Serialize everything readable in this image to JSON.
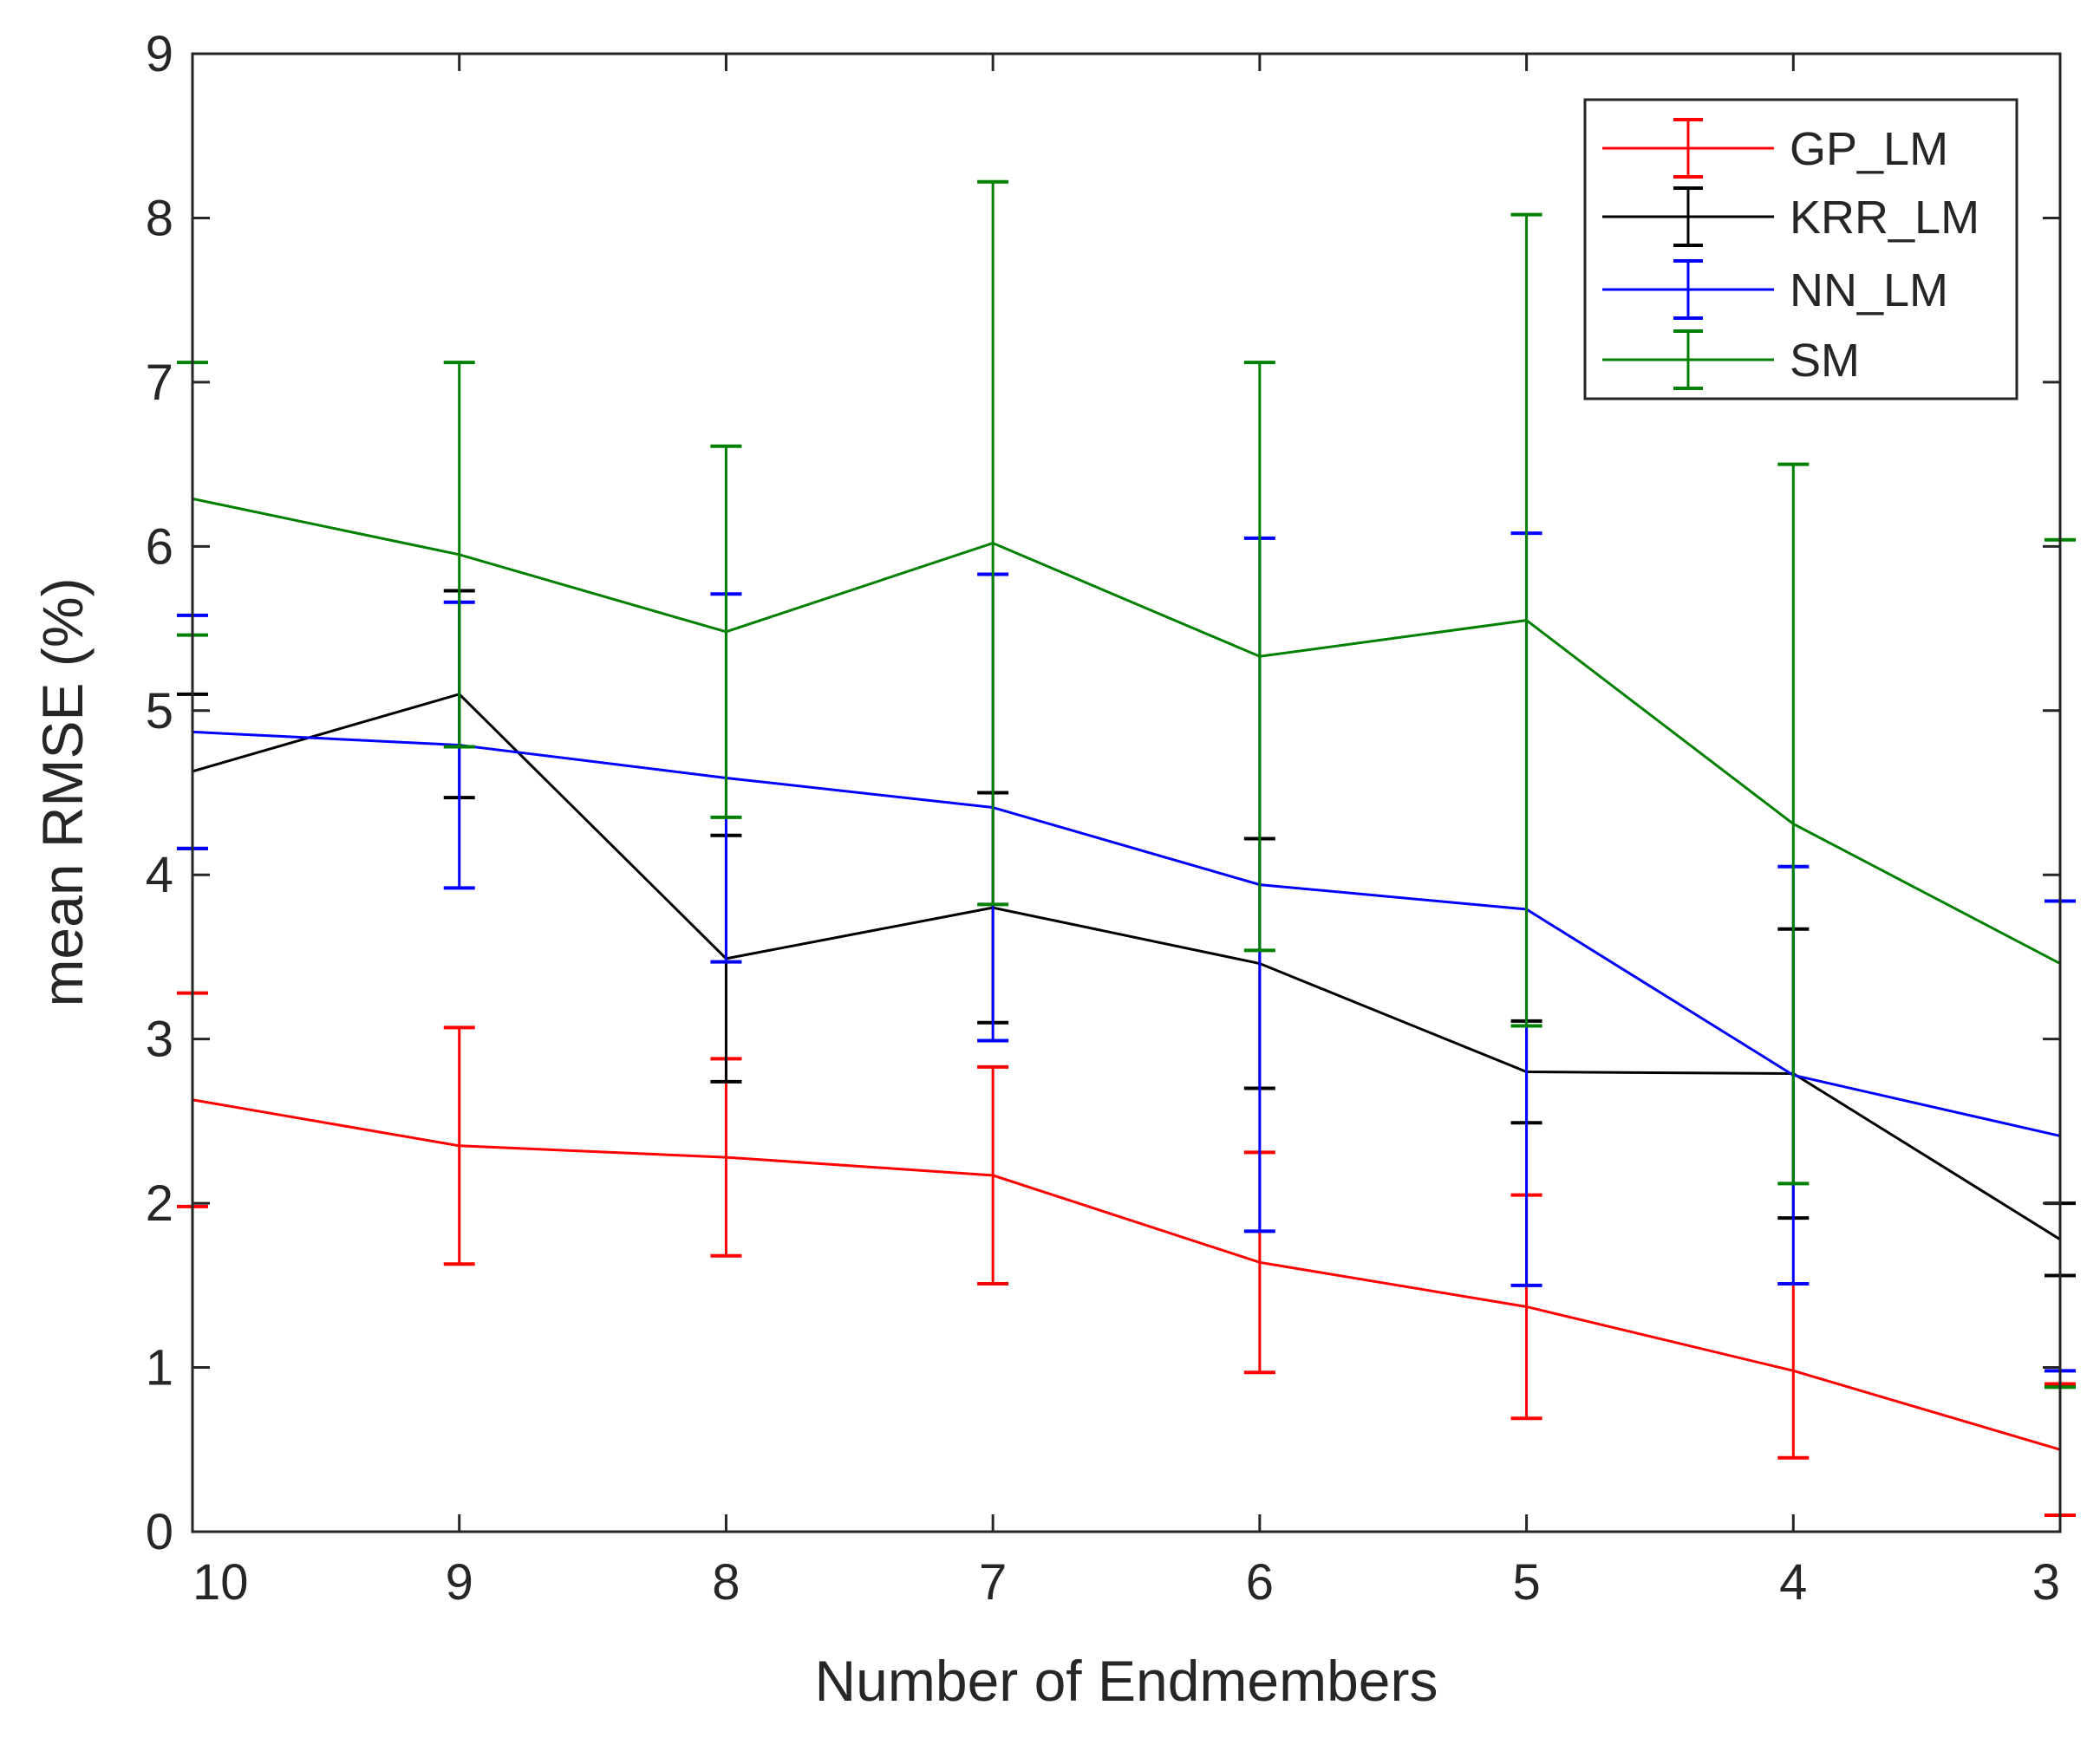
{
  "chart_data": {
    "type": "line",
    "title": "",
    "xlabel": "Number of Endmembers",
    "ylabel": "mean RMSE (%)",
    "categories": [
      "10",
      "9",
      "8",
      "7",
      "6",
      "5",
      "4",
      "3"
    ],
    "ylim": [
      0,
      9
    ],
    "yticks": [
      "0",
      "1",
      "2",
      "3",
      "4",
      "5",
      "6",
      "7",
      "8",
      "9"
    ],
    "grid": false,
    "legend_position": "top-right",
    "series": [
      {
        "name": "GP_LM",
        "color": "#ff0000",
        "values": [
          2.63,
          2.35,
          2.28,
          2.17,
          1.64,
          1.37,
          0.98,
          0.5
        ],
        "errors": [
          0.65,
          0.72,
          0.6,
          0.66,
          0.67,
          0.68,
          0.53,
          0.4
        ]
      },
      {
        "name": "KRR_LM",
        "color": "#000000",
        "values": [
          4.63,
          5.1,
          3.49,
          3.8,
          3.46,
          2.8,
          2.79,
          1.78
        ],
        "errors": [
          0.47,
          0.63,
          0.75,
          0.7,
          0.76,
          0.31,
          0.88,
          0.22
        ]
      },
      {
        "name": "NN_LM",
        "color": "#0000ff",
        "values": [
          4.87,
          4.79,
          4.59,
          4.41,
          3.94,
          3.79,
          2.78,
          2.41
        ],
        "errors": [
          0.71,
          0.87,
          1.12,
          1.42,
          2.11,
          2.29,
          1.27,
          1.43
        ]
      },
      {
        "name": "SM",
        "color": "#008000",
        "values": [
          6.29,
          5.95,
          5.48,
          6.02,
          5.33,
          5.55,
          4.31,
          3.46
        ],
        "errors": [
          0.83,
          1.17,
          1.13,
          2.2,
          1.79,
          2.47,
          2.19,
          2.58
        ]
      }
    ]
  }
}
